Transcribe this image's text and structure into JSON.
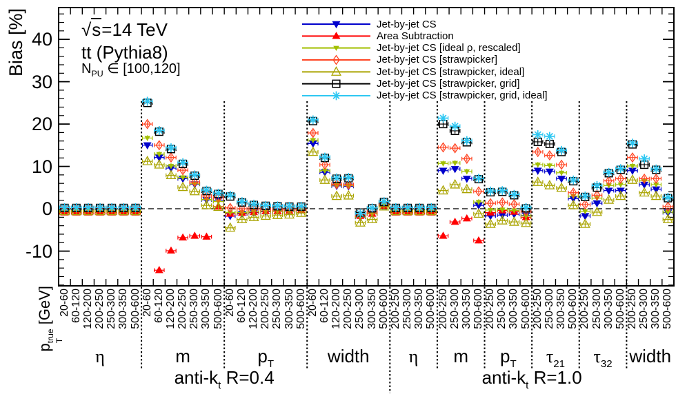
{
  "annotations": {
    "energy": {
      "radical": "√",
      "overlined": "s",
      "rest": "=14 TeV"
    },
    "process": "tt (Pythia8)",
    "pileup": {
      "base": "N",
      "sub": "PU",
      "rest": " ∈ [100,120]"
    }
  },
  "axes": {
    "y_title": "Bias [%]",
    "x_title": {
      "base": "p",
      "sup": "true",
      "sub": "T",
      "rest": " [GeV]"
    }
  },
  "chart_data": {
    "type": "scatter",
    "ylabel": "Bias [%]",
    "xlabel": "pT true [GeV]",
    "ylim": [
      -18.2,
      47.5
    ],
    "yticks": [
      -10,
      0,
      10,
      20,
      30,
      40
    ],
    "y_minor_step": 2,
    "grid": false,
    "zero_line": "dashed",
    "legend_position": "top-center",
    "series": [
      {
        "name": "Jet-by-jet CS",
        "color": "#0000cc",
        "marker": "triangle-down-filled"
      },
      {
        "name": "Area Subtraction",
        "color": "#ff0000",
        "marker": "triangle-up-filled"
      },
      {
        "name": "Jet-by-jet CS [ideal ρ, rescaled]",
        "color": "#a2bf00",
        "marker": "triangle-down-filled-small"
      },
      {
        "name": "Jet-by-jet CS [strawpicker]",
        "color": "#ff4422",
        "marker": "diamond-open"
      },
      {
        "name": "Jet-by-jet CS [strawpicker, ideal]",
        "color": "#aaa400",
        "marker": "triangle-up-open"
      },
      {
        "name": "Jet-by-jet CS [strawpicker, grid]",
        "color": "#000000",
        "marker": "square-open"
      },
      {
        "name": "Jet-by-jet CS [strawpicker, grid, ideal]",
        "color": "#2ec7f2",
        "marker": "asterisk"
      }
    ],
    "sections": [
      {
        "label": {
          "base": "anti-k",
          "sub": "t",
          "rest": " R=0.4"
        },
        "groups": [
          {
            "label": {
              "base": "η",
              "greek": true
            },
            "bins": [
              "20-60",
              "60-120",
              "120-200",
              "200-250",
              "250-300",
              "300-350",
              "500-600"
            ],
            "values": [
              [
                -0.2,
                -0.2,
                -0.2,
                -0.2,
                -0.2,
                -0.2,
                -0.2
              ],
              [
                -0.9,
                -0.9,
                -0.9,
                -0.9,
                -0.9,
                -0.9,
                -0.9
              ],
              [
                -0.3,
                -0.3,
                -0.3,
                -0.3,
                -0.3,
                -0.3,
                -0.3
              ],
              [
                0.1,
                0.1,
                0.1,
                0.1,
                0.1,
                0.1,
                0.1
              ],
              [
                -0.6,
                -0.6,
                -0.6,
                -0.6,
                -0.6,
                -0.6,
                -0.6
              ],
              [
                0.2,
                0.2,
                0.2,
                0.2,
                0.2,
                0.2,
                0.2
              ],
              [
                0.3,
                0.3,
                0.3,
                0.3,
                0.3,
                0.3,
                0.3
              ]
            ]
          },
          {
            "label": {
              "base": "m"
            },
            "bins": [
              "20-60",
              "60-120",
              "120-200",
              "200-250",
              "250-300",
              "300-350",
              "500-600"
            ],
            "values": [
              [
                15.0,
                12.1,
                9.6,
                7.1,
                5.8,
                2.1,
                2.0
              ],
              [
                null,
                -14.5,
                -9.9,
                -6.8,
                -6.4,
                -6.6,
                0.5
              ],
              [
                16.7,
                12.9,
                10.1,
                7.4,
                5.9,
                2.2,
                1.7
              ],
              [
                20.0,
                15.0,
                12.1,
                9.1,
                6.3,
                3.0,
                2.6
              ],
              [
                11.2,
                10.4,
                7.9,
                5.1,
                4.1,
                0.8,
                0.4
              ],
              [
                25.0,
                18.2,
                14.1,
                10.6,
                7.8,
                4.2,
                3.5
              ],
              [
                25.4,
                18.5,
                14.4,
                10.9,
                8.0,
                4.4,
                3.7
              ]
            ]
          },
          {
            "label": {
              "base": "p",
              "sub": "T"
            },
            "bins": [
              "20-60",
              "60-120",
              "120-200",
              "200-250",
              "250-300",
              "300-350",
              "500-600"
            ],
            "values": [
              [
                -1.7,
                -1.2,
                -0.9,
                -0.7,
                -0.6,
                -0.6,
                -0.4
              ],
              [
                -1.2,
                -1.0,
                -0.8,
                -0.6,
                -0.6,
                -0.5,
                -0.3
              ],
              [
                -0.9,
                -0.9,
                -0.7,
                -0.5,
                -0.5,
                -0.5,
                -0.3
              ],
              [
                0.2,
                0.0,
                -0.1,
                -0.1,
                -0.1,
                -0.1,
                0.0
              ],
              [
                -4.5,
                -2.5,
                -2.0,
                -1.7,
                -1.5,
                -1.4,
                -1.0
              ],
              [
                2.9,
                1.5,
                0.9,
                0.7,
                0.6,
                0.5,
                0.5
              ],
              [
                3.2,
                1.7,
                1.1,
                0.8,
                0.7,
                0.6,
                0.6
              ]
            ]
          },
          {
            "label": {
              "base": "width"
            },
            "bins": [
              "20-60",
              "60-120",
              "120-200",
              "200-250",
              "250-300",
              "300-350",
              "500-600"
            ],
            "values": [
              [
                15.4,
                8.6,
                5.4,
                5.3,
                -2.0,
                -1.2,
                1.0
              ],
              [
                null,
                null,
                null,
                null,
                -1.7,
                -1.2,
                0.7
              ],
              [
                16.2,
                9.0,
                5.6,
                5.5,
                -1.9,
                -1.1,
                1.1
              ],
              [
                17.9,
                10.4,
                5.8,
                5.7,
                -1.5,
                -0.8,
                1.2
              ],
              [
                13.4,
                6.8,
                3.0,
                3.1,
                -3.3,
                -2.5,
                0.5
              ],
              [
                20.7,
                12.0,
                7.1,
                7.2,
                -0.9,
                0.1,
                1.6
              ],
              [
                21.0,
                12.2,
                7.3,
                7.4,
                -1.1,
                0.2,
                1.7
              ]
            ]
          }
        ]
      },
      {
        "label": {
          "base": "anti-k",
          "sub": "t",
          "rest": " R=1.0"
        },
        "groups": [
          {
            "label": {
              "base": "η",
              "greek": true
            },
            "bins": [
              "200-250",
              "250-300",
              "300-350",
              "500-600"
            ],
            "values": [
              [
                -0.2,
                -0.2,
                -0.2,
                -0.2
              ],
              [
                -0.9,
                -0.9,
                -0.9,
                -0.9
              ],
              [
                -0.3,
                -0.3,
                -0.3,
                -0.3
              ],
              [
                0.1,
                0.1,
                0.1,
                0.1
              ],
              [
                -0.6,
                -0.6,
                -0.6,
                -0.6
              ],
              [
                0.2,
                0.2,
                0.2,
                0.2
              ],
              [
                0.3,
                0.3,
                0.3,
                0.3
              ]
            ]
          },
          {
            "label": {
              "base": "m"
            },
            "bins": [
              "200-250",
              "250-300",
              "300-350",
              "500-600"
            ],
            "values": [
              [
                9.0,
                9.4,
                7.1,
                0.8
              ],
              [
                -6.4,
                -3.1,
                -2.3,
                -7.5
              ],
              [
                10.7,
                10.8,
                8.8,
                1.6
              ],
              [
                14.5,
                14.3,
                11.8,
                4.1
              ],
              [
                4.3,
                5.7,
                4.6,
                -1.2
              ],
              [
                20.0,
                18.4,
                15.7,
                7.0
              ],
              [
                21.4,
                19.5,
                16.1,
                7.2
              ]
            ]
          },
          {
            "label": {
              "base": "p",
              "sub": "T"
            },
            "bins": [
              "200-250",
              "250-300",
              "300-350",
              "500-600"
            ],
            "values": [
              [
                -1.7,
                -1.5,
                -1.3,
                -1.6
              ],
              [
                -0.9,
                -0.4,
                -0.7,
                -2.0
              ],
              [
                -0.3,
                -0.2,
                -0.4,
                -1.7
              ],
              [
                1.3,
                1.5,
                1.1,
                -0.6
              ],
              [
                -3.6,
                -2.8,
                -3.1,
                -3.4
              ],
              [
                3.9,
                4.0,
                3.2,
                0.1
              ],
              [
                4.2,
                4.3,
                3.4,
                0.3
              ]
            ]
          },
          {
            "label": {
              "base": "τ",
              "sub": "21",
              "greek": true
            },
            "bins": [
              "200-250",
              "250-300",
              "300-350",
              "500-600"
            ],
            "values": [
              [
                9.0,
                8.8,
                7.1,
                2.4
              ],
              [
                null,
                null,
                null,
                null
              ],
              [
                10.4,
                10.2,
                8.5,
                3.0
              ],
              [
                13.4,
                12.6,
                10.4,
                3.8
              ],
              [
                6.3,
                5.5,
                4.9,
                0.8
              ],
              [
                15.8,
                15.3,
                13.4,
                6.5
              ],
              [
                17.5,
                17.1,
                13.8,
                6.8
              ]
            ]
          },
          {
            "label": {
              "base": "τ",
              "sub": "32",
              "greek": true
            },
            "bins": [
              "200-250",
              "250-300",
              "300-350",
              "500-600"
            ],
            "values": [
              [
                -1.7,
                1.3,
                4.3,
                4.3
              ],
              [
                null,
                null,
                null,
                null
              ],
              [
                -0.6,
                2.5,
                5.5,
                5.7
              ],
              [
                1.0,
                3.2,
                6.6,
                7.1
              ],
              [
                -3.6,
                -0.8,
                2.1,
                3.0
              ],
              [
                2.8,
                5.0,
                8.4,
                9.2
              ],
              [
                3.0,
                5.5,
                8.6,
                9.5
              ]
            ]
          },
          {
            "label": {
              "base": "width"
            },
            "bins": [
              "200-250",
              "250-300",
              "300-350",
              "500-600"
            ],
            "values": [
              [
                9.0,
                5.7,
                4.6,
                -0.9
              ],
              [
                null,
                null,
                null,
                null
              ],
              [
                10.1,
                6.6,
                5.7,
                -0.8
              ],
              [
                12.1,
                7.1,
                7.1,
                0.5
              ],
              [
                6.8,
                3.8,
                3.0,
                -2.5
              ],
              [
                15.2,
                10.4,
                9.2,
                2.5
              ],
              [
                15.5,
                11.8,
                9.4,
                2.7
              ]
            ]
          }
        ]
      }
    ]
  }
}
